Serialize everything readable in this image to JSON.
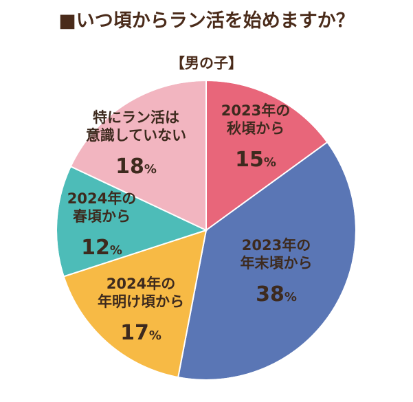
{
  "title": "■いつ頃からラン活を始めますか？",
  "subtitle": "【男の子】",
  "chart_data": {
    "type": "pie",
    "slices": [
      {
        "label_lines": [
          "2023年の",
          "秋頃から"
        ],
        "value": 15,
        "color": "#e8667a"
      },
      {
        "label_lines": [
          "2023年の",
          "年末頃から"
        ],
        "value": 38,
        "color": "#5a76b5"
      },
      {
        "label_lines": [
          "2024年の",
          "年明け頃から"
        ],
        "value": 17,
        "color": "#f7ba45"
      },
      {
        "label_lines": [
          "2024年の",
          "春頃から"
        ],
        "value": 12,
        "color": "#4dbcb8"
      },
      {
        "label_lines": [
          "特にラン活は",
          "意識していない"
        ],
        "value": 18,
        "color": "#f2b5c0"
      }
    ],
    "unit": "%"
  }
}
